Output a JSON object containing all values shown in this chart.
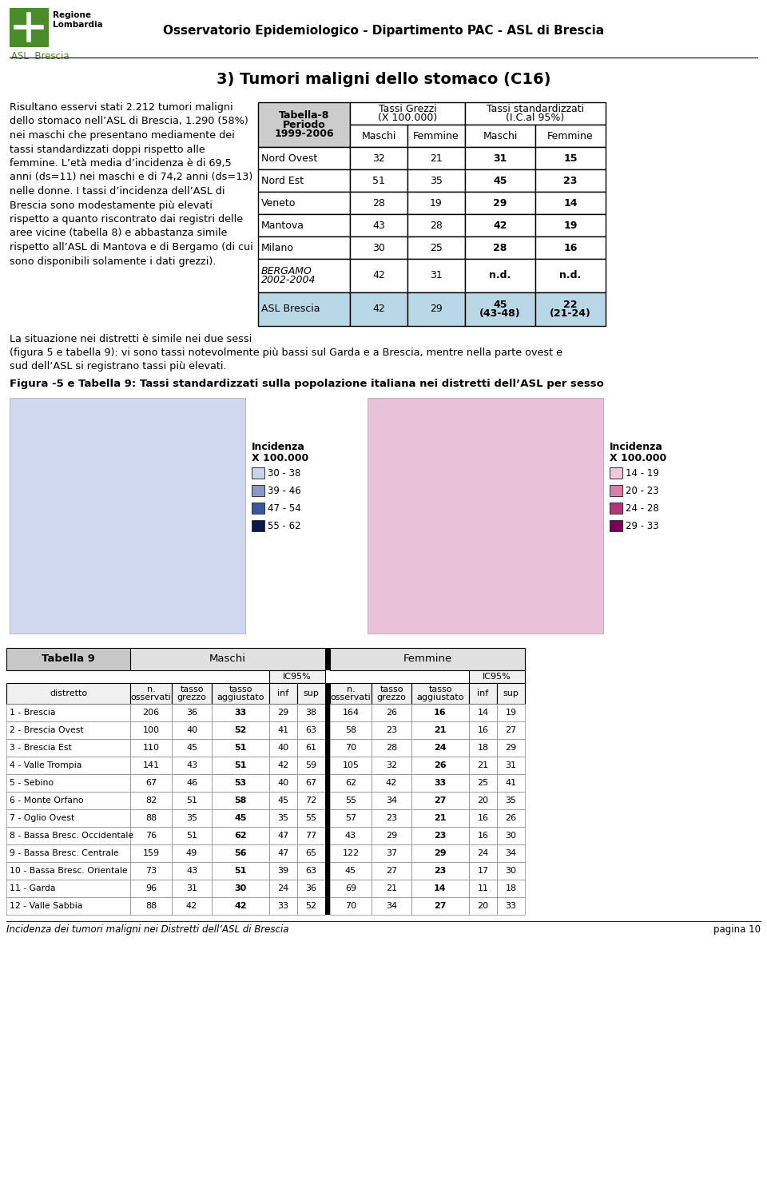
{
  "page_title": "Osservatorio Epidemiologico - Dipartimento PAC - ASL di Brescia",
  "section_title": "3) Tumori maligni dello stomaco (C16)",
  "body_lines": [
    "Risultano esservi stati 2.212 tumori maligni",
    "dello stomaco nell’ASL di Brescia, 1.290 (58%)",
    "nei maschi che presentano mediamente dei",
    "tassi standardizzati doppi rispetto alle",
    "femmine. L’età media d’incidenza è di 69,5",
    "anni (ds=11) nei maschi e di 74,2 anni (ds=13)",
    "nelle donne. I tassi d’incidenza dell’ASL di",
    "Brescia sono modestamente più elevati",
    "rispetto a quanto riscontrato dai registri delle",
    "aree vicine (tabella 8) e abbastanza simile",
    "rispetto all’ASL di Mantova e di Bergamo (di cui",
    "sono disponibili solamente i dati grezzi)."
  ],
  "body2_lines": [
    "La situazione nei distretti è simile nei due sessi",
    "(figura 5 e tabella 9): vi sono tassi notevolmente più bassi sul Garda e a Brescia, mentre nella parte ovest e",
    "sud dell’ASL si registrano tassi più elevati."
  ],
  "figure_caption": "Figura -5 e Tabella 9: Tassi standardizzati sulla popolazione italiana nei distretti dell’ASL per sesso",
  "footer_left": "Incidenza dei tumori maligni nei Distretti dell’ASL di Brescia",
  "footer_right": "pagina 10",
  "t8_rows": [
    [
      "Nord Ovest",
      "32",
      "21",
      "31",
      "15"
    ],
    [
      "Nord Est",
      "51",
      "35",
      "45",
      "23"
    ],
    [
      "Veneto",
      "28",
      "19",
      "29",
      "14"
    ],
    [
      "Mantova",
      "43",
      "28",
      "42",
      "19"
    ],
    [
      "Milano",
      "30",
      "25",
      "28",
      "16"
    ],
    [
      "BERGAMO\n2002-2004",
      "42",
      "31",
      "n.d.",
      "n.d."
    ],
    [
      "ASL Brescia",
      "42",
      "29",
      "45\n(43-48)",
      "22\n(21-24)"
    ]
  ],
  "t9_districts": [
    "1 - Brescia",
    "2 - Brescia Ovest",
    "3 - Brescia Est",
    "4 - Valle Trompia",
    "5 - Sebino",
    "6 - Monte Orfano",
    "7 - Oglio Ovest",
    "8 - Bassa Bresc. Occidentale",
    "9 - Bassa Bresc. Centrale",
    "10 - Bassa Bresc. Orientale",
    "11 - Garda",
    "12 - Valle Sabbia"
  ],
  "t9_maschi": [
    [
      206,
      36,
      33,
      29,
      38
    ],
    [
      100,
      40,
      52,
      41,
      63
    ],
    [
      110,
      45,
      51,
      40,
      61
    ],
    [
      141,
      43,
      51,
      42,
      59
    ],
    [
      67,
      46,
      53,
      40,
      67
    ],
    [
      82,
      51,
      58,
      45,
      72
    ],
    [
      88,
      35,
      45,
      35,
      55
    ],
    [
      76,
      51,
      62,
      47,
      77
    ],
    [
      159,
      49,
      56,
      47,
      65
    ],
    [
      73,
      43,
      51,
      39,
      63
    ],
    [
      96,
      31,
      30,
      24,
      36
    ],
    [
      88,
      42,
      42,
      33,
      52
    ]
  ],
  "t9_femmine": [
    [
      164,
      26,
      16,
      14,
      19
    ],
    [
      58,
      23,
      21,
      16,
      27
    ],
    [
      70,
      28,
      24,
      18,
      29
    ],
    [
      105,
      32,
      26,
      21,
      31
    ],
    [
      62,
      42,
      33,
      25,
      41
    ],
    [
      55,
      34,
      27,
      20,
      35
    ],
    [
      57,
      23,
      21,
      16,
      26
    ],
    [
      43,
      29,
      23,
      16,
      30
    ],
    [
      122,
      37,
      29,
      24,
      34
    ],
    [
      45,
      27,
      23,
      17,
      30
    ],
    [
      69,
      21,
      14,
      11,
      18
    ],
    [
      70,
      34,
      27,
      20,
      33
    ]
  ],
  "legend_m_colors": [
    "#c8d4e8",
    "#8898c8",
    "#3858a0",
    "#0a1848"
  ],
  "legend_m_labels": [
    "30 - 38",
    "39 - 46",
    "47 - 54",
    "55 - 62"
  ],
  "legend_f_colors": [
    "#f0c8d8",
    "#d880a8",
    "#b03878",
    "#780058"
  ],
  "legend_f_labels": [
    "14 - 19",
    "20 - 23",
    "24 - 28",
    "29 - 33"
  ],
  "logo_green": "#4a8c2a",
  "asl_row_bg": "#b8d8e8"
}
